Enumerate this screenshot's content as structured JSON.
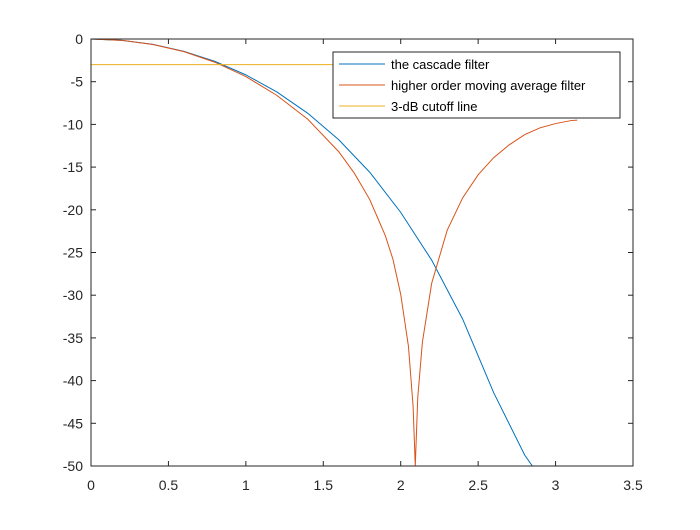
{
  "chart_data": {
    "type": "line",
    "title": "",
    "xlabel": "",
    "ylabel": "",
    "xlim": [
      0,
      3.5
    ],
    "ylim": [
      -50,
      0
    ],
    "xticks": [
      0,
      0.5,
      1,
      1.5,
      2,
      2.5,
      3,
      3.5
    ],
    "xtick_labels": [
      "0",
      "0.5",
      "1",
      "1.5",
      "2",
      "2.5",
      "3",
      "3.5"
    ],
    "yticks": [
      0,
      -5,
      -10,
      -15,
      -20,
      -25,
      -30,
      -35,
      -40,
      -45,
      -50
    ],
    "ytick_labels": [
      "0",
      "-5",
      "-10",
      "-15",
      "-20",
      "-25",
      "-30",
      "-35",
      "-40",
      "-45",
      "-50"
    ],
    "grid": false,
    "box": true,
    "legend": {
      "position": "top-right"
    },
    "series": [
      {
        "name": "the cascade filter",
        "color": "#0072bd",
        "x": [
          0,
          0.2,
          0.4,
          0.6,
          0.8,
          1.0,
          1.2,
          1.4,
          1.6,
          1.8,
          2.0,
          2.2,
          2.4,
          2.6,
          2.8,
          2.85
        ],
        "y": [
          0,
          -0.16,
          -0.63,
          -1.44,
          -2.62,
          -4.2,
          -6.2,
          -8.7,
          -11.8,
          -15.6,
          -20.3,
          -25.9,
          -32.8,
          -41.4,
          -48.7,
          -50
        ]
      },
      {
        "name": "higher order moving average filter",
        "color": "#d95319",
        "x": [
          0,
          0.2,
          0.4,
          0.6,
          0.8,
          1.0,
          1.2,
          1.4,
          1.6,
          1.7,
          1.8,
          1.9,
          1.95,
          2.0,
          2.05,
          2.08,
          2.094,
          2.11,
          2.14,
          2.2,
          2.3,
          2.4,
          2.5,
          2.6,
          2.7,
          2.8,
          2.9,
          3.0,
          3.1,
          3.14
        ],
        "y": [
          0,
          -0.16,
          -0.64,
          -1.48,
          -2.72,
          -4.4,
          -6.6,
          -9.4,
          -13.2,
          -15.7,
          -18.8,
          -23.0,
          -25.8,
          -29.9,
          -36.0,
          -43.0,
          -50,
          -42.0,
          -35.5,
          -28.6,
          -22.4,
          -18.6,
          -15.9,
          -13.9,
          -12.4,
          -11.2,
          -10.4,
          -9.9,
          -9.55,
          -9.5
        ]
      },
      {
        "name": "3-dB cutoff line",
        "color": "#edb120",
        "x": [
          0,
          3.14
        ],
        "y": [
          -3,
          -3
        ]
      }
    ]
  }
}
